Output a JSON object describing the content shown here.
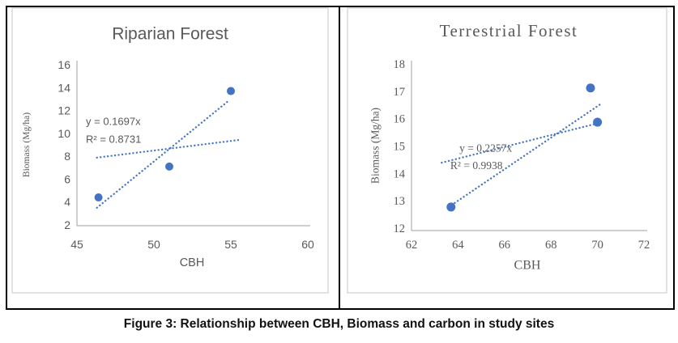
{
  "figure": {
    "caption": "Figure 3: Relationship between CBH, Biomass and carbon in study sites"
  },
  "colors": {
    "accent_blue": "#4472C4",
    "text_gray": "#595959",
    "axis_gray": "#BFBFBF",
    "chart_border_gray": "#D9D9D9"
  },
  "chart_data": [
    {
      "type": "scatter",
      "title": "Riparian Forest",
      "xlabel": "CBH",
      "ylabel": "Biomass (Mg/ha)",
      "xlim": [
        45,
        60
      ],
      "ylim": [
        2,
        16
      ],
      "xticks": [
        45,
        50,
        55,
        60
      ],
      "yticks": [
        2,
        4,
        6,
        8,
        10,
        12,
        14,
        16
      ],
      "points": [
        [
          46.4,
          4.4
        ],
        [
          51,
          7.1
        ],
        [
          55,
          13.7
        ]
      ],
      "trendlines": [
        {
          "name": "linear-trendline",
          "x1": 46.3,
          "y1": 3.5,
          "x2": 54.9,
          "y2": 12.9
        },
        {
          "name": "origin-trendline",
          "x1": 46.3,
          "y1": 7.88,
          "x2": 55.5,
          "y2": 9.42
        }
      ],
      "annotations": [
        {
          "text": "y = 0.1697x",
          "x": 45.58,
          "y": 10.74
        },
        {
          "text": "R² = 0.8731",
          "x": 45.58,
          "y": 9.18
        }
      ],
      "legend_position": "none",
      "grid": false
    },
    {
      "type": "scatter",
      "title": "Terrestrial Forest",
      "xlabel": "CBH",
      "ylabel": "Biomass (Mg/ha)",
      "xlim": [
        62,
        72
      ],
      "ylim": [
        12,
        18
      ],
      "xticks": [
        62,
        64,
        66,
        68,
        70,
        72
      ],
      "yticks": [
        12,
        13,
        14,
        15,
        16,
        17,
        18
      ],
      "points": [
        [
          63.7,
          12.8
        ],
        [
          69.7,
          17.15
        ],
        [
          70,
          15.9
        ]
      ],
      "trendlines": [
        {
          "name": "linear-trendline",
          "x1": 63.6,
          "y1": 12.8,
          "x2": 70.2,
          "y2": 16.6
        },
        {
          "name": "origin-trendline",
          "x1": 63.3,
          "y1": 14.42,
          "x2": 70.2,
          "y2": 15.9
        }
      ],
      "annotations": [
        {
          "text": "y = 0.2257x",
          "x": 64.06,
          "y": 14.83
        },
        {
          "text": "R² = 0.9938",
          "x": 63.67,
          "y": 14.18
        }
      ],
      "legend_position": "none",
      "grid": false
    }
  ]
}
